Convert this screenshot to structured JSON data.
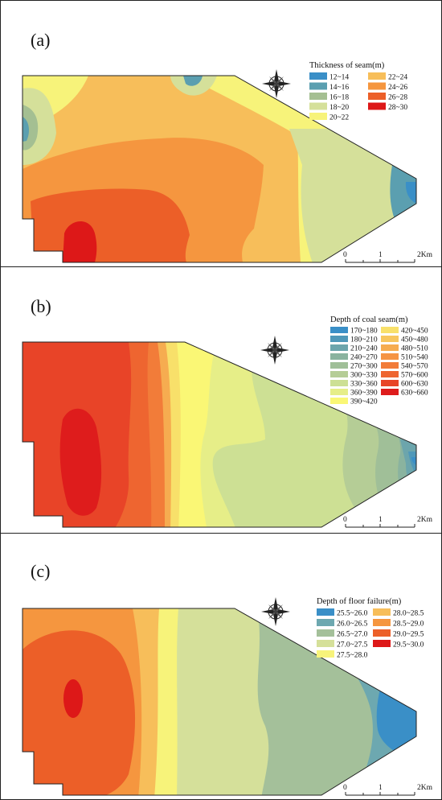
{
  "panels": [
    {
      "label": "(a)",
      "legend": {
        "title": "Thickness of seam(m)",
        "items": [
          {
            "range": "12~14",
            "color": "#3a8fc7"
          },
          {
            "range": "14~16",
            "color": "#5b9fb0"
          },
          {
            "range": "16~18",
            "color": "#a4bf92"
          },
          {
            "range": "18~20",
            "color": "#d5e09a"
          },
          {
            "range": "20~22",
            "color": "#f7f37a"
          },
          {
            "range": "22~24",
            "color": "#f7be5a"
          },
          {
            "range": "24~26",
            "color": "#f5963f"
          },
          {
            "range": "26~28",
            "color": "#ec5f28"
          },
          {
            "range": "28~30",
            "color": "#dd1818"
          }
        ]
      },
      "scale": {
        "ticks": [
          "0",
          "1",
          "2Km"
        ]
      }
    },
    {
      "label": "(b)",
      "legend": {
        "title": "Depth of coal seam(m)",
        "items": [
          {
            "range": "170~180",
            "color": "#3a8fc7"
          },
          {
            "range": "180~210",
            "color": "#4f98b9"
          },
          {
            "range": "210~240",
            "color": "#6ca5ac"
          },
          {
            "range": "240~270",
            "color": "#8ab39f"
          },
          {
            "range": "270~300",
            "color": "#a0bf98"
          },
          {
            "range": "300~330",
            "color": "#b5cd96"
          },
          {
            "range": "330~360",
            "color": "#cde094"
          },
          {
            "range": "360~390",
            "color": "#e6ee88"
          },
          {
            "range": "390~420",
            "color": "#faf775"
          },
          {
            "range": "420~450",
            "color": "#f8e06a"
          },
          {
            "range": "450~480",
            "color": "#f7c65e"
          },
          {
            "range": "480~510",
            "color": "#f6ac50"
          },
          {
            "range": "510~540",
            "color": "#f59444"
          },
          {
            "range": "540~570",
            "color": "#f27c39"
          },
          {
            "range": "570~600",
            "color": "#ee6530"
          },
          {
            "range": "600~630",
            "color": "#e84428"
          },
          {
            "range": "630~660",
            "color": "#de1c1c"
          }
        ]
      },
      "scale": {
        "ticks": [
          "0",
          "1",
          "2Km"
        ]
      }
    },
    {
      "label": "(c)",
      "legend": {
        "title": "Depth of floor failure(m)",
        "items": [
          {
            "range": "25.5~26.0",
            "color": "#3a8fc7"
          },
          {
            "range": "26.0~26.5",
            "color": "#6da8b0"
          },
          {
            "range": "26.5~27.0",
            "color": "#a4c09a"
          },
          {
            "range": "27.0~27.5",
            "color": "#d5e09a"
          },
          {
            "range": "27.5~28.0",
            "color": "#f7f37a"
          },
          {
            "range": "28.0~28.5",
            "color": "#f7be5a"
          },
          {
            "range": "28.5~29.0",
            "color": "#f5963f"
          },
          {
            "range": "29.0~29.5",
            "color": "#ec5f28"
          },
          {
            "range": "29.5~30.0",
            "color": "#dd1818"
          }
        ]
      },
      "scale": {
        "ticks": [
          "0",
          "1",
          "2Km"
        ]
      }
    }
  ]
}
